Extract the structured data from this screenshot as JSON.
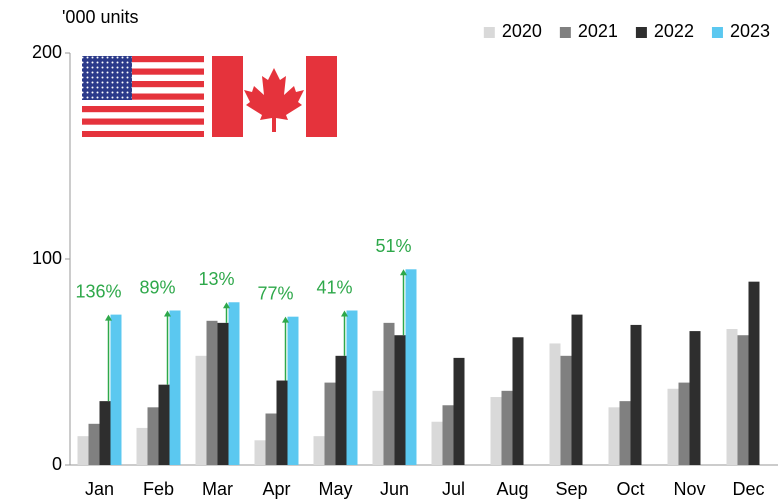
{
  "chart_data": {
    "type": "bar",
    "y_unit_label": "'000 units",
    "categories": [
      "Jan",
      "Feb",
      "Mar",
      "Apr",
      "May",
      "Jun",
      "Jul",
      "Aug",
      "Sep",
      "Oct",
      "Nov",
      "Dec"
    ],
    "series": [
      {
        "name": "2020",
        "color": "#d9d9d9",
        "values": [
          14,
          18,
          53,
          12,
          14,
          36,
          21,
          33,
          59,
          28,
          37,
          66
        ]
      },
      {
        "name": "2021",
        "color": "#808080",
        "values": [
          20,
          28,
          70,
          25,
          40,
          69,
          29,
          36,
          53,
          31,
          40,
          63
        ]
      },
      {
        "name": "2022",
        "color": "#2e2e2e",
        "values": [
          31,
          39,
          69,
          41,
          53,
          63,
          52,
          62,
          73,
          68,
          65,
          89
        ]
      },
      {
        "name": "2023",
        "color": "#5bc8f0",
        "values": [
          73,
          75,
          79,
          72,
          75,
          95,
          null,
          null,
          null,
          null,
          null,
          null
        ]
      }
    ],
    "annotations": [
      {
        "category": "Jan",
        "label": "136%"
      },
      {
        "category": "Feb",
        "label": "89%"
      },
      {
        "category": "Mar",
        "label": "13%"
      },
      {
        "category": "Apr",
        "label": "77%"
      },
      {
        "category": "May",
        "label": "41%"
      },
      {
        "category": "Jun",
        "label": "51%"
      }
    ],
    "annotation_color": "#2ea84a",
    "ylim": [
      0,
      200
    ],
    "yticks": [
      0,
      100,
      200
    ],
    "grid": false,
    "legend": "top-right"
  }
}
